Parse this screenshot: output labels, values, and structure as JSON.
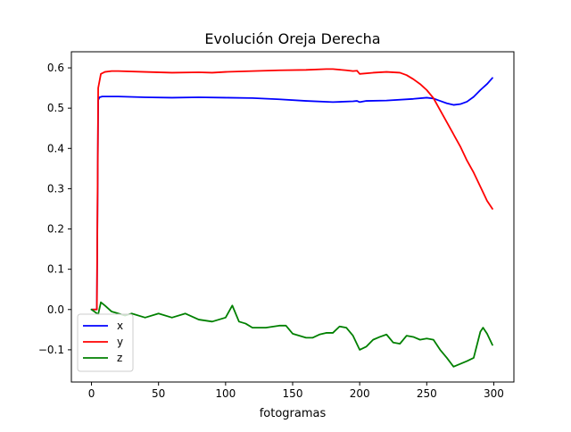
{
  "chart_data": {
    "type": "line",
    "title": "Evolución Oreja Derecha",
    "xlabel": "fotogramas",
    "ylabel": "",
    "xlim": [
      -15,
      315
    ],
    "ylim": [
      -0.18,
      0.64
    ],
    "xticks": [
      0,
      50,
      100,
      150,
      200,
      250,
      300
    ],
    "yticks": [
      -0.1,
      0.0,
      0.1,
      0.2,
      0.3,
      0.4,
      0.5,
      0.6
    ],
    "xtick_labels": [
      "0",
      "50",
      "100",
      "150",
      "200",
      "250",
      "300"
    ],
    "ytick_labels": [
      "−0.1",
      "0.0",
      "0.1",
      "0.2",
      "0.3",
      "0.4",
      "0.5",
      "0.6"
    ],
    "grid": false,
    "legend_position": "lower-left",
    "series": [
      {
        "name": "x",
        "color": "#0000ff",
        "points": [
          [
            0,
            0
          ],
          [
            4,
            0
          ],
          [
            5,
            0.52
          ],
          [
            6,
            0.527
          ],
          [
            8,
            0.529
          ],
          [
            20,
            0.529
          ],
          [
            40,
            0.527
          ],
          [
            60,
            0.526
          ],
          [
            80,
            0.527
          ],
          [
            100,
            0.526
          ],
          [
            120,
            0.525
          ],
          [
            140,
            0.522
          ],
          [
            160,
            0.518
          ],
          [
            180,
            0.515
          ],
          [
            195,
            0.517
          ],
          [
            198,
            0.518
          ],
          [
            200,
            0.515
          ],
          [
            205,
            0.518
          ],
          [
            220,
            0.519
          ],
          [
            240,
            0.523
          ],
          [
            250,
            0.526
          ],
          [
            255,
            0.524
          ],
          [
            260,
            0.518
          ],
          [
            265,
            0.512
          ],
          [
            270,
            0.508
          ],
          [
            275,
            0.51
          ],
          [
            280,
            0.516
          ],
          [
            285,
            0.528
          ],
          [
            290,
            0.545
          ],
          [
            295,
            0.56
          ],
          [
            299,
            0.575
          ]
        ]
      },
      {
        "name": "y",
        "color": "#ff0000",
        "points": [
          [
            0,
            0
          ],
          [
            4,
            0
          ],
          [
            5,
            0.55
          ],
          [
            7,
            0.585
          ],
          [
            10,
            0.59
          ],
          [
            15,
            0.592
          ],
          [
            20,
            0.592
          ],
          [
            40,
            0.59
          ],
          [
            60,
            0.588
          ],
          [
            80,
            0.589
          ],
          [
            90,
            0.588
          ],
          [
            100,
            0.59
          ],
          [
            120,
            0.592
          ],
          [
            140,
            0.594
          ],
          [
            160,
            0.595
          ],
          [
            175,
            0.597
          ],
          [
            180,
            0.597
          ],
          [
            190,
            0.594
          ],
          [
            195,
            0.592
          ],
          [
            198,
            0.593
          ],
          [
            200,
            0.585
          ],
          [
            210,
            0.588
          ],
          [
            220,
            0.59
          ],
          [
            230,
            0.588
          ],
          [
            235,
            0.582
          ],
          [
            240,
            0.572
          ],
          [
            245,
            0.56
          ],
          [
            250,
            0.545
          ],
          [
            255,
            0.525
          ],
          [
            260,
            0.495
          ],
          [
            265,
            0.465
          ],
          [
            270,
            0.435
          ],
          [
            275,
            0.405
          ],
          [
            280,
            0.37
          ],
          [
            285,
            0.34
          ],
          [
            290,
            0.305
          ],
          [
            295,
            0.27
          ],
          [
            299,
            0.25
          ]
        ]
      },
      {
        "name": "z",
        "color": "#008000",
        "points": [
          [
            0,
            0
          ],
          [
            5,
            -0.012
          ],
          [
            7,
            0.018
          ],
          [
            10,
            0.01
          ],
          [
            15,
            -0.005
          ],
          [
            20,
            -0.01
          ],
          [
            25,
            -0.015
          ],
          [
            30,
            -0.01
          ],
          [
            40,
            -0.02
          ],
          [
            50,
            -0.01
          ],
          [
            60,
            -0.02
          ],
          [
            70,
            -0.01
          ],
          [
            80,
            -0.025
          ],
          [
            90,
            -0.03
          ],
          [
            100,
            -0.02
          ],
          [
            105,
            0.01
          ],
          [
            110,
            -0.03
          ],
          [
            115,
            -0.035
          ],
          [
            120,
            -0.045
          ],
          [
            130,
            -0.045
          ],
          [
            140,
            -0.04
          ],
          [
            145,
            -0.04
          ],
          [
            150,
            -0.06
          ],
          [
            155,
            -0.065
          ],
          [
            160,
            -0.07
          ],
          [
            165,
            -0.07
          ],
          [
            170,
            -0.062
          ],
          [
            175,
            -0.058
          ],
          [
            180,
            -0.058
          ],
          [
            185,
            -0.042
          ],
          [
            190,
            -0.045
          ],
          [
            195,
            -0.065
          ],
          [
            200,
            -0.1
          ],
          [
            205,
            -0.092
          ],
          [
            210,
            -0.075
          ],
          [
            215,
            -0.068
          ],
          [
            220,
            -0.062
          ],
          [
            225,
            -0.082
          ],
          [
            230,
            -0.085
          ],
          [
            235,
            -0.065
          ],
          [
            240,
            -0.068
          ],
          [
            245,
            -0.075
          ],
          [
            250,
            -0.072
          ],
          [
            255,
            -0.075
          ],
          [
            260,
            -0.1
          ],
          [
            265,
            -0.12
          ],
          [
            270,
            -0.142
          ],
          [
            275,
            -0.135
          ],
          [
            280,
            -0.128
          ],
          [
            285,
            -0.12
          ],
          [
            290,
            -0.055
          ],
          [
            292,
            -0.045
          ],
          [
            295,
            -0.06
          ],
          [
            299,
            -0.088
          ]
        ]
      }
    ]
  }
}
